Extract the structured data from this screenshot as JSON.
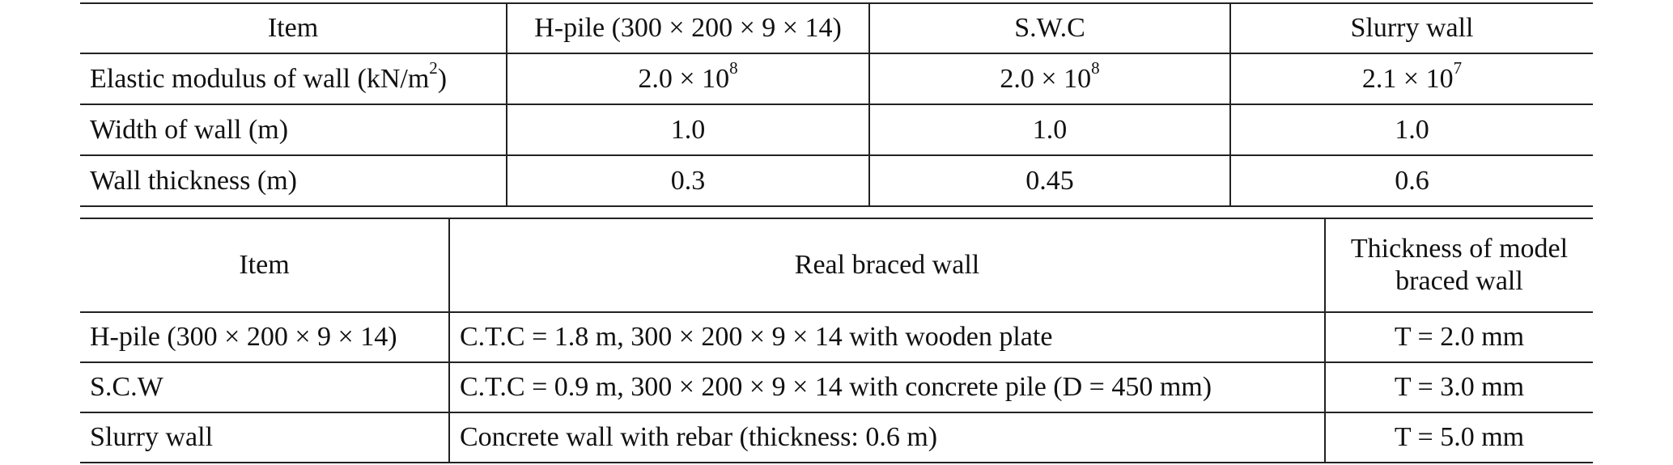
{
  "table1": {
    "header": [
      "Item",
      "H-pile (300 × 200 × 9 × 14)",
      "S.W.C",
      "Slurry wall"
    ],
    "rows": [
      [
        [
          {
            "text": "Elastic modulus of wall (kN/m"
          },
          {
            "sup": "2"
          },
          {
            "text": ")"
          }
        ],
        [
          {
            "text": "2.0 × 10"
          },
          {
            "sup": "8"
          }
        ],
        [
          {
            "text": "2.0 × 10"
          },
          {
            "sup": "8"
          }
        ],
        [
          {
            "text": "2.1 × 10"
          },
          {
            "sup": "7"
          }
        ]
      ],
      [
        "Width of wall (m)",
        "1.0",
        "1.0",
        "1.0"
      ],
      [
        "Wall thickness (m)",
        "0.3",
        "0.45",
        "0.6"
      ]
    ]
  },
  "table2": {
    "header": [
      "Item",
      "Real braced wall",
      "Thickness of model braced wall"
    ],
    "rows": [
      [
        "H-pile (300 × 200 × 9 × 14)",
        "C.T.C = 1.8 m, 300 × 200 × 9 × 14 with wooden plate",
        "T = 2.0 mm"
      ],
      [
        "S.C.W",
        "C.T.C = 0.9 m, 300 × 200 × 9 × 14 with concrete pile (D = 450 mm)",
        "T = 3.0 mm"
      ],
      [
        "Slurry wall",
        "Concrete wall with rebar (thickness: 0.6 m)",
        "T = 5.0 mm"
      ]
    ]
  }
}
